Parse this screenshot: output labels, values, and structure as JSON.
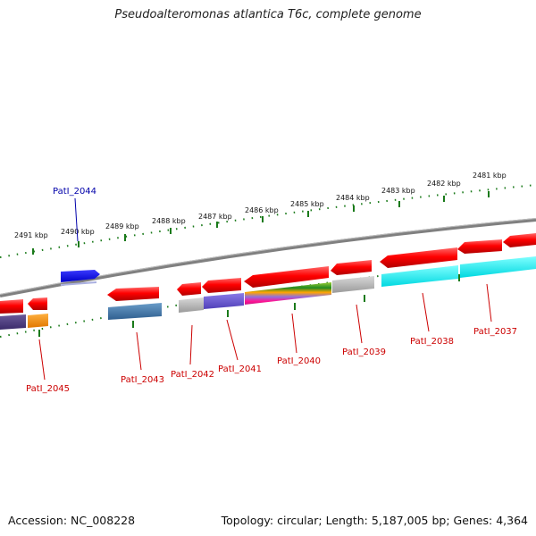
{
  "title": "Pseudoalteromonas atlantica T6c, complete genome",
  "footer": {
    "accession": "Accession: NC_008228",
    "stats": "Topology: circular; Length: 5,187,005 bp; Genes: 4,364"
  },
  "colors": {
    "backbone": "#808080",
    "ruler": "#1a7a1a",
    "gene_label": "#cc0000",
    "highlight_label": "#0000aa"
  },
  "ruler_labels": [
    {
      "text": "2491 kbp"
    },
    {
      "text": "2490 kbp"
    },
    {
      "text": "2489 kbp"
    },
    {
      "text": "2488 kbp"
    },
    {
      "text": "2487 kbp"
    },
    {
      "text": "2486 kbp"
    },
    {
      "text": "2485 kbp"
    },
    {
      "text": "2484 kbp"
    },
    {
      "text": "2483 kbp"
    },
    {
      "text": "2482 kbp"
    },
    {
      "text": "2481 kbp"
    }
  ],
  "gene_labels": [
    {
      "text": "PatI_2044",
      "highlight": true
    },
    {
      "text": "PatI_2045"
    },
    {
      "text": "PatI_2043"
    },
    {
      "text": "PatI_2042"
    },
    {
      "text": "PatI_2041"
    },
    {
      "text": "PatI_2040"
    },
    {
      "text": "PatI_2039"
    },
    {
      "text": "PatI_2038"
    },
    {
      "text": "PatI_2037"
    }
  ]
}
